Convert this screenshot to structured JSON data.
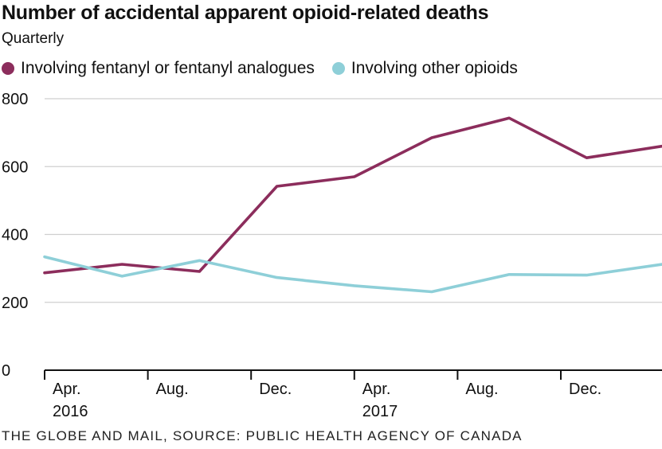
{
  "title": "Number of accidental apparent opioid-related deaths",
  "subtitle": "Quarterly",
  "source": "THE GLOBE AND MAIL, SOURCE: PUBLIC HEALTH AGENCY OF CANADA",
  "colors": {
    "fentanyl": "#8c2d5c",
    "other": "#8ecfd8",
    "grid": "#cfcfcf",
    "axis": "#111111"
  },
  "chart_data": {
    "type": "line",
    "ylim": [
      0,
      800
    ],
    "yticks": [
      0,
      200,
      400,
      600,
      800
    ],
    "grid": true,
    "legend_position": "top-left",
    "x_tick_labels": [
      {
        "label": "Apr.",
        "year": "2016"
      },
      {
        "label": "Aug.",
        "year": ""
      },
      {
        "label": "Dec.",
        "year": ""
      },
      {
        "label": "Apr.",
        "year": "2017"
      },
      {
        "label": "Aug.",
        "year": ""
      },
      {
        "label": "Dec.",
        "year": ""
      }
    ],
    "series": [
      {
        "name": "Involving fentanyl or fentanyl analogues",
        "color": "#8c2d5c",
        "values": [
          287,
          312,
          291,
          542,
          570,
          685,
          743,
          626,
          660
        ]
      },
      {
        "name": "Involving other opioids",
        "color": "#8ecfd8",
        "values": [
          334,
          277,
          323,
          273,
          249,
          231,
          282,
          280,
          312
        ]
      }
    ]
  }
}
